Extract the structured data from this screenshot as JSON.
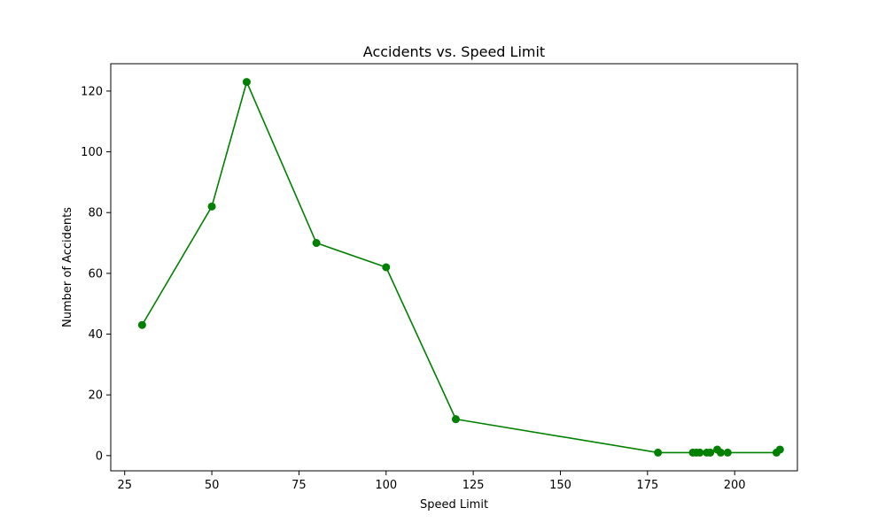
{
  "chart_data": {
    "type": "line",
    "title": "Accidents vs. Speed Limit",
    "xlabel": "Speed Limit",
    "ylabel": "Number of Accidents",
    "xlim": [
      21,
      218
    ],
    "ylim": [
      -5,
      129
    ],
    "xticks": [
      25,
      50,
      75,
      100,
      125,
      150,
      175,
      200
    ],
    "yticks": [
      0,
      20,
      40,
      60,
      80,
      100,
      120
    ],
    "grid": false,
    "legend": "none",
    "series": [
      {
        "color": "#008000",
        "marker": "circle",
        "x": [
          30,
          50,
          60,
          80,
          100,
          120,
          178,
          188,
          189,
          190,
          192,
          193,
          195,
          196,
          198,
          212,
          213
        ],
        "y": [
          43,
          82,
          123,
          70,
          62,
          12,
          1,
          1,
          1,
          1,
          1,
          1,
          2,
          1,
          1,
          1,
          2
        ]
      }
    ]
  }
}
